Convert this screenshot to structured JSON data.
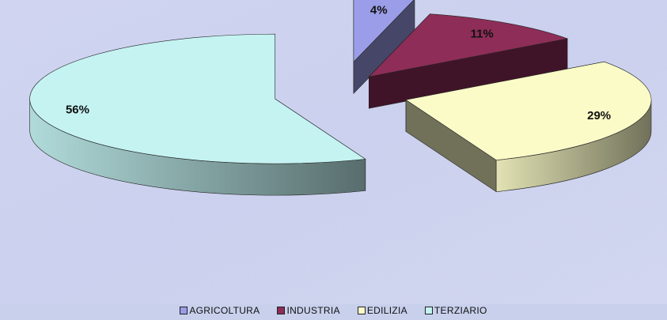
{
  "chart_data": {
    "type": "pie",
    "title": "",
    "categories": [
      "AGRICOLTURA",
      "INDUSTRIA",
      "EDILIZIA",
      "TERZIARIO"
    ],
    "values": [
      4,
      11,
      29,
      56
    ],
    "labels": [
      "4%",
      "11%",
      "29%",
      "56%"
    ],
    "colors": [
      "#9b9de8",
      "#8e2d58",
      "#fbfbc8",
      "#c4f3f2"
    ],
    "legend_position": "bottom",
    "style": "3d-exploded"
  }
}
